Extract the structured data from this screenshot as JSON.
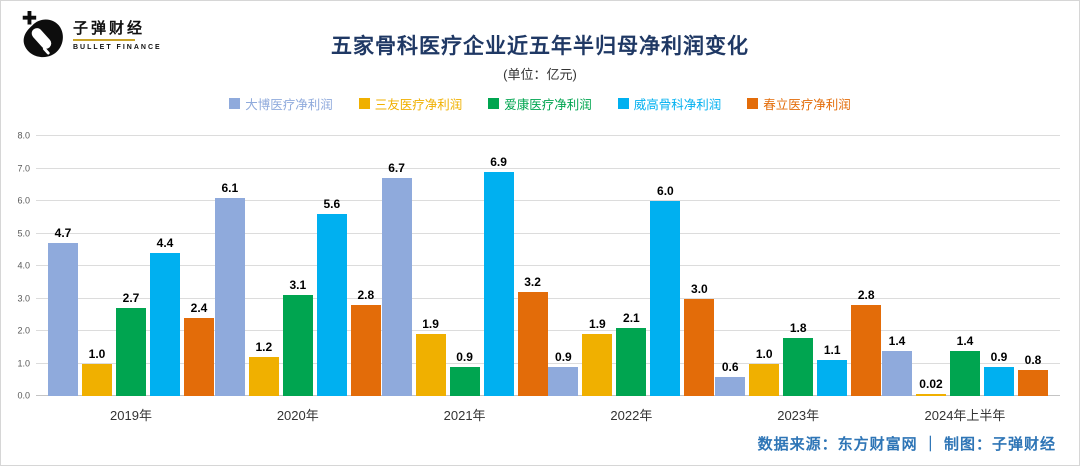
{
  "logo": {
    "name": "子弹财经",
    "subname": "BULLET FINANCE"
  },
  "footer": "数据来源：东方财富网 ｜ 制图：子弹财经",
  "chart_data": {
    "type": "bar",
    "title": "五家骨科医疗企业近五年半归母净利润变化",
    "unit_label": "(单位：亿元)",
    "xlabel": "",
    "ylabel": "",
    "ylim": [
      0,
      8
    ],
    "ytick_step": 1,
    "grid": true,
    "legend_position": "top",
    "categories": [
      "2019年",
      "2020年",
      "2021年",
      "2022年",
      "2023年",
      "2024年上半年"
    ],
    "series": [
      {
        "name": "大博医疗净利润",
        "color": "#8FAADC",
        "values": [
          4.7,
          6.1,
          6.7,
          0.9,
          0.6,
          1.4
        ],
        "labels": [
          "4.7",
          "6.1",
          "6.7",
          "0.9",
          "0.6",
          "1.4"
        ]
      },
      {
        "name": "三友医疗净利润",
        "color": "#F0B000",
        "values": [
          1.0,
          1.2,
          1.9,
          1.9,
          1.0,
          0.02
        ],
        "labels": [
          "1.0",
          "1.2",
          "1.9",
          "1.9",
          "1.0",
          "0.02"
        ]
      },
      {
        "name": "爱康医疗净利润",
        "color": "#00A550",
        "values": [
          2.7,
          3.1,
          0.9,
          2.1,
          1.8,
          1.4
        ],
        "labels": [
          "2.7",
          "3.1",
          "0.9",
          "2.1",
          "1.8",
          "1.4"
        ]
      },
      {
        "name": "威高骨科净利润",
        "color": "#00B0F0",
        "values": [
          4.4,
          5.6,
          6.9,
          6.0,
          1.1,
          0.9
        ],
        "labels": [
          "4.4",
          "5.6",
          "6.9",
          "6.0",
          "1.1",
          "0.9"
        ]
      },
      {
        "name": "春立医疗净利润",
        "color": "#E36C09",
        "values": [
          2.4,
          2.8,
          3.2,
          3.0,
          2.8,
          0.8
        ],
        "labels": [
          "2.4",
          "2.8",
          "3.2",
          "3.0",
          "2.8",
          "0.8"
        ]
      }
    ]
  }
}
